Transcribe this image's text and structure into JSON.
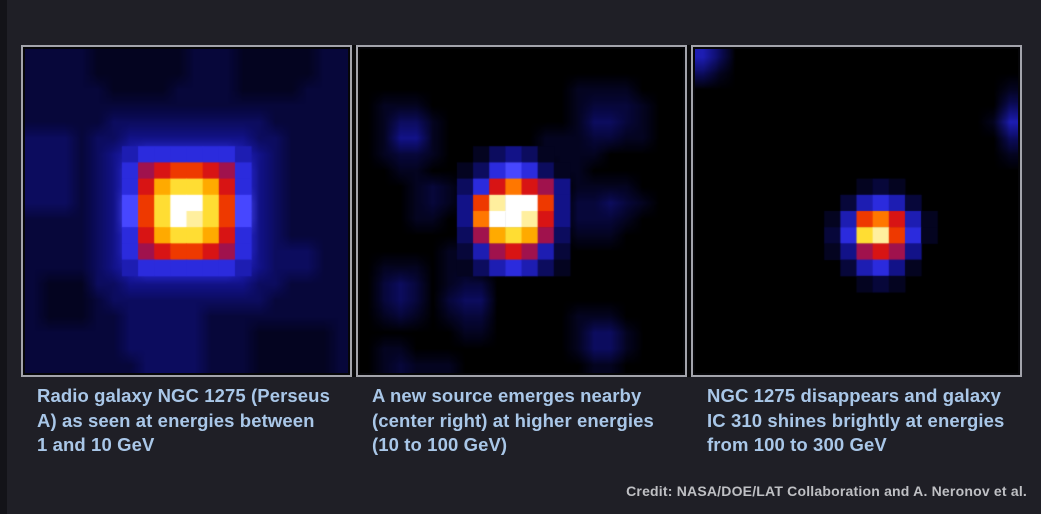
{
  "page": {
    "background_color": "#1f1f26",
    "left_strip_color": "#131318",
    "panel_frame_color": "#a3a4ac",
    "panel_inner_edge_color": "#060609",
    "caption_text_color": "#a9c7e8",
    "credit_text_color": "#bfc0c4"
  },
  "credit": "Credit: NASA/DOE/LAT Collaboration and A. Neronov et al.",
  "chart_data": {
    "type": "heatmap",
    "description": "Three gamma-ray count maps of the same sky region at increasing energies, showing NGC 1275 fading and IC 310 emerging",
    "grid_size": 20,
    "legend_position": "none",
    "grid": false,
    "palette": [
      "#000000",
      "#040420",
      "#07073a",
      "#0c0c5e",
      "#121288",
      "#1d1db2",
      "#2b2bdd",
      "#4747ff",
      "#a0124d",
      "#d81414",
      "#ee3900",
      "#ff7700",
      "#ffaa00",
      "#ffdd33",
      "#ffef9e",
      "#ffffff"
    ],
    "palette_note": "hex digit 0-f per cell, 0=black background rising through blue, red, orange, yellow to white peak",
    "panels": [
      {
        "source_name": "NGC 1275 (Perseus A)",
        "energy_range_gev": [
          1,
          10
        ],
        "caption": "Radio galaxy NGC 1275 (Perseus\nA) as seen at energies between\n1 and 10 GeV",
        "peak_cell": {
          "row": 9,
          "col": 9
        },
        "background_grid": [
          "22221111112221111122",
          "22221111112221111122",
          "22222111122221111222",
          "22222222222222222222",
          "22222333333333322222",
          "33323344444444332222",
          "33323456666665432222",
          "333234689aa986432222",
          "33323469cddc96432222",
          "3332347adffda7432222",
          "2222347adfeda7432222",
          "22223469cddc96432222",
          "222234689aa986433322",
          "22223456666665433322",
          "21113344444444332222",
          "21112333333333322222",
          "21112233333222222222",
          "22222233333222111112",
          "22222233333222111112",
          "22222223333222111112"
        ],
        "source_cells": [
          {
            "row": 6,
            "col": 6,
            "values": "56666665"
          },
          {
            "row": 7,
            "col": 6,
            "values": "689aa986"
          },
          {
            "row": 8,
            "col": 6,
            "values": "69cddc96"
          },
          {
            "row": 9,
            "col": 6,
            "values": "7adffda7"
          },
          {
            "row": 10,
            "col": 6,
            "values": "7adfeda7"
          },
          {
            "row": 11,
            "col": 6,
            "values": "69cddc96"
          },
          {
            "row": 12,
            "col": 6,
            "values": "689aa986"
          },
          {
            "row": 13,
            "col": 6,
            "values": "56666665"
          }
        ]
      },
      {
        "source_name": "New nearby source (center right)",
        "energy_range_gev": [
          10,
          100
        ],
        "caption": "A new source emerges nearby\n(center right) at higher energies\n(10 to 100 GeV)",
        "peak_cell": {
          "row": 9,
          "col": 9
        },
        "background_grid": [
          "00000000000000000000",
          "00000000000000000000",
          "00000000000001111000",
          "01110000000001222100",
          "01331000000001332100",
          "01441000000111221100",
          "01221000000111100000",
          "00110000000011000000",
          "00012100000001111000",
          "00012100000002232100",
          "00011000000002221000",
          "00000000000001110000",
          "00000110000000000000",
          "01110110000000000000",
          "02320122000000000000",
          "02320233000000000000",
          "01210122000001110000",
          "00000011000001331000",
          "01100000000001331000",
          "01211100000000110000"
        ],
        "source_cells": [
          {
            "row": 6,
            "col": 6,
            "values": "0134310"
          },
          {
            "row": 7,
            "col": 6,
            "values": "1367631"
          },
          {
            "row": 8,
            "col": 6,
            "values": "369b984"
          },
          {
            "row": 9,
            "col": 6,
            "values": "4aeffa4"
          },
          {
            "row": 10,
            "col": 6,
            "values": "4bffe94"
          },
          {
            "row": 11,
            "col": 6,
            "values": "38cdc83"
          },
          {
            "row": 12,
            "col": 6,
            "values": "2589852"
          },
          {
            "row": 13,
            "col": 6,
            "values": "1356531"
          }
        ]
      },
      {
        "source_name": "IC 310",
        "energy_range_gev": [
          100,
          300
        ],
        "caption": "NGC 1275 disappears and galaxy\nIC 310 shines brightly at energies\nfrom 100 to 300 GeV",
        "peak_cell": {
          "row": 11,
          "col": 11
        },
        "background_grid": [
          "53000000000000000000",
          "31000000000000000000",
          "00000000000000000001",
          "00000000000000000003",
          "00000000000000000015",
          "00000000000000000003",
          "00000000000000000001",
          "00000000000000000000",
          "00000000000000000000",
          "00000000000000000000",
          "00000000000000000000",
          "00000000000000000000",
          "00000000000000000000",
          "00000000000000000000",
          "00000000000000000000",
          "00000000000000000000",
          "00000000000000000000",
          "00000000000000000000",
          "00000000000000000000",
          "00000000000000000000"
        ],
        "source_cells": [
          {
            "row": 8,
            "col": 8,
            "values": "0012100"
          },
          {
            "row": 9,
            "col": 8,
            "values": "0256520"
          },
          {
            "row": 10,
            "col": 8,
            "values": "15ab951"
          },
          {
            "row": 11,
            "col": 8,
            "values": "26dea61"
          },
          {
            "row": 12,
            "col": 8,
            "values": "1489840"
          },
          {
            "row": 13,
            "col": 8,
            "values": "0256410"
          },
          {
            "row": 14,
            "col": 8,
            "values": "0012100"
          }
        ]
      }
    ]
  }
}
